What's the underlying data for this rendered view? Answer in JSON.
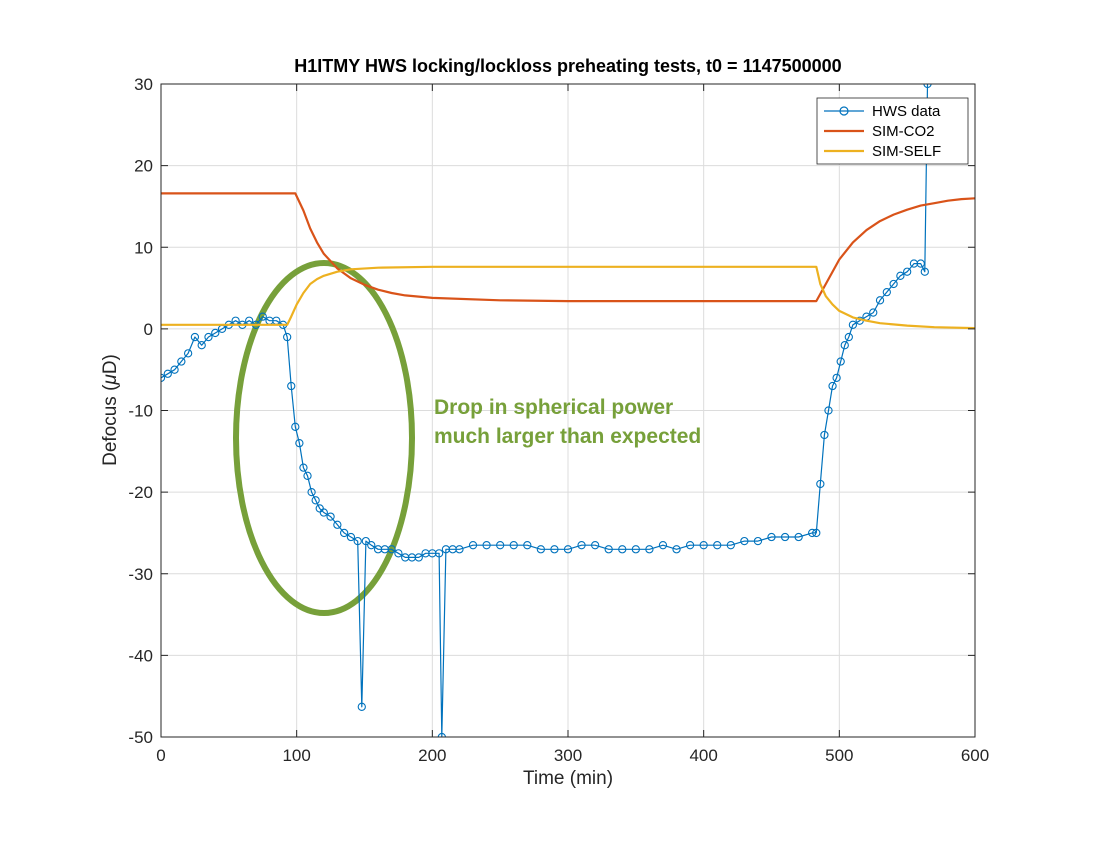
{
  "chart_data": {
    "type": "line",
    "title": "H1ITMY HWS locking/lockloss preheating tests, t0 = 1147500000",
    "xlabel": "Time (min)",
    "ylabel_prefix": "Defocus (",
    "ylabel_unit_symbol": "μ",
    "ylabel_suffix": "D)",
    "xlim": [
      0,
      600
    ],
    "ylim": [
      -50,
      30
    ],
    "x_ticks": [
      "0",
      "100",
      "200",
      "300",
      "400",
      "500",
      "600"
    ],
    "y_ticks": [
      "30",
      "20",
      "10",
      "0",
      "-10",
      "-20",
      "-30",
      "-40",
      "-50"
    ],
    "grid": true,
    "legend_position": "top-right",
    "series": [
      {
        "name": "HWS data",
        "color": "#0072BD",
        "marker": "circle",
        "points": [
          [
            0,
            -6
          ],
          [
            5,
            -5.5
          ],
          [
            10,
            -5
          ],
          [
            15,
            -4
          ],
          [
            20,
            -3
          ],
          [
            25,
            -1
          ],
          [
            30,
            -2
          ],
          [
            35,
            -1
          ],
          [
            40,
            -0.5
          ],
          [
            45,
            0
          ],
          [
            50,
            0.5
          ],
          [
            55,
            1
          ],
          [
            60,
            0.5
          ],
          [
            65,
            1
          ],
          [
            70,
            0.5
          ],
          [
            75,
            1.5
          ],
          [
            80,
            1
          ],
          [
            85,
            1
          ],
          [
            90,
            0.5
          ],
          [
            93,
            -1
          ],
          [
            96,
            -7
          ],
          [
            99,
            -12
          ],
          [
            102,
            -14
          ],
          [
            105,
            -17
          ],
          [
            108,
            -18
          ],
          [
            111,
            -20
          ],
          [
            114,
            -21
          ],
          [
            117,
            -22
          ],
          [
            120,
            -22.5
          ],
          [
            125,
            -23
          ],
          [
            130,
            -24
          ],
          [
            135,
            -25
          ],
          [
            140,
            -25.5
          ],
          [
            145,
            -26
          ],
          [
            148,
            -46.3
          ],
          [
            151,
            -26
          ],
          [
            155,
            -26.5
          ],
          [
            160,
            -27
          ],
          [
            165,
            -27
          ],
          [
            170,
            -27
          ],
          [
            175,
            -27.5
          ],
          [
            180,
            -28
          ],
          [
            185,
            -28
          ],
          [
            190,
            -28
          ],
          [
            195,
            -27.5
          ],
          [
            200,
            -27.5
          ],
          [
            205,
            -27.5
          ],
          [
            207,
            -50
          ],
          [
            210,
            -27
          ],
          [
            215,
            -27
          ],
          [
            220,
            -27
          ],
          [
            230,
            -26.5
          ],
          [
            240,
            -26.5
          ],
          [
            250,
            -26.5
          ],
          [
            260,
            -26.5
          ],
          [
            270,
            -26.5
          ],
          [
            280,
            -27
          ],
          [
            290,
            -27
          ],
          [
            300,
            -27
          ],
          [
            310,
            -26.5
          ],
          [
            320,
            -26.5
          ],
          [
            330,
            -27
          ],
          [
            340,
            -27
          ],
          [
            350,
            -27
          ],
          [
            360,
            -27
          ],
          [
            370,
            -26.5
          ],
          [
            380,
            -27
          ],
          [
            390,
            -26.5
          ],
          [
            400,
            -26.5
          ],
          [
            410,
            -26.5
          ],
          [
            420,
            -26.5
          ],
          [
            430,
            -26
          ],
          [
            440,
            -26
          ],
          [
            450,
            -25.5
          ],
          [
            460,
            -25.5
          ],
          [
            470,
            -25.5
          ],
          [
            480,
            -25
          ],
          [
            483,
            -25
          ],
          [
            486,
            -19
          ],
          [
            489,
            -13
          ],
          [
            492,
            -10
          ],
          [
            495,
            -7
          ],
          [
            498,
            -6
          ],
          [
            501,
            -4
          ],
          [
            504,
            -2
          ],
          [
            507,
            -1
          ],
          [
            510,
            0.5
          ],
          [
            515,
            1
          ],
          [
            520,
            1.5
          ],
          [
            525,
            2
          ],
          [
            530,
            3.5
          ],
          [
            535,
            4.5
          ],
          [
            540,
            5.5
          ],
          [
            545,
            6.5
          ],
          [
            550,
            7
          ],
          [
            555,
            8
          ],
          [
            560,
            8
          ],
          [
            563,
            7
          ],
          [
            565,
            30
          ]
        ]
      },
      {
        "name": "SIM-CO2",
        "color": "#D95319",
        "points": [
          [
            0,
            16.6
          ],
          [
            50,
            16.6
          ],
          [
            99,
            16.6
          ],
          [
            105,
            14.5
          ],
          [
            110,
            12.3
          ],
          [
            115,
            10.6
          ],
          [
            120,
            9.2
          ],
          [
            130,
            7.4
          ],
          [
            140,
            6.2
          ],
          [
            150,
            5.4
          ],
          [
            160,
            4.8
          ],
          [
            170,
            4.4
          ],
          [
            180,
            4.1
          ],
          [
            200,
            3.8
          ],
          [
            250,
            3.5
          ],
          [
            300,
            3.4
          ],
          [
            350,
            3.4
          ],
          [
            400,
            3.4
          ],
          [
            450,
            3.4
          ],
          [
            483,
            3.4
          ],
          [
            490,
            5.5
          ],
          [
            500,
            8.5
          ],
          [
            510,
            10.6
          ],
          [
            520,
            12.1
          ],
          [
            530,
            13.2
          ],
          [
            540,
            14
          ],
          [
            550,
            14.6
          ],
          [
            560,
            15.1
          ],
          [
            570,
            15.4
          ],
          [
            580,
            15.7
          ],
          [
            590,
            15.9
          ],
          [
            600,
            16
          ]
        ]
      },
      {
        "name": "SIM-SELF",
        "color": "#EDB120",
        "points": [
          [
            0,
            0.5
          ],
          [
            50,
            0.5
          ],
          [
            93,
            0.5
          ],
          [
            96,
            1.5
          ],
          [
            100,
            3
          ],
          [
            105,
            4.4
          ],
          [
            110,
            5.5
          ],
          [
            115,
            6.1
          ],
          [
            120,
            6.5
          ],
          [
            130,
            7
          ],
          [
            140,
            7.3
          ],
          [
            160,
            7.5
          ],
          [
            200,
            7.6
          ],
          [
            300,
            7.6
          ],
          [
            400,
            7.6
          ],
          [
            483,
            7.6
          ],
          [
            486,
            5.5
          ],
          [
            490,
            4
          ],
          [
            495,
            3
          ],
          [
            500,
            2.2
          ],
          [
            510,
            1.4
          ],
          [
            520,
            1
          ],
          [
            530,
            0.7
          ],
          [
            550,
            0.4
          ],
          [
            570,
            0.2
          ],
          [
            600,
            0.1
          ]
        ]
      }
    ],
    "annotations": [
      {
        "text_lines": [
          "Drop in spherical power",
          "much larger than expected"
        ],
        "color": "#77A03A",
        "shape": "ellipse"
      }
    ]
  }
}
